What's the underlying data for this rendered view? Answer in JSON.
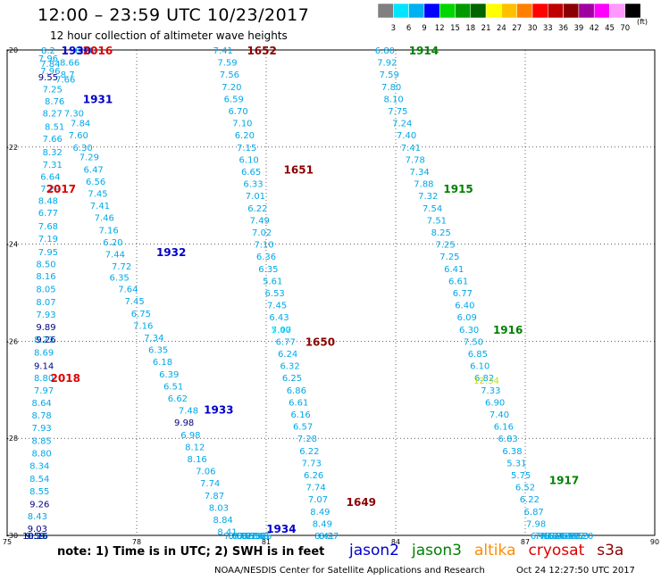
{
  "header": {
    "title": "12:00 – 23:59 UTC 10/23/2017",
    "subtitle": "12 hour collection of altimeter wave heights"
  },
  "colorbar": {
    "labels": [
      "3",
      "6",
      "9",
      "12",
      "15",
      "18",
      "21",
      "24",
      "27",
      "30",
      "33",
      "36",
      "39",
      "42",
      "45",
      "70"
    ],
    "colors": [
      "#808080",
      "#00e5ff",
      "#00b0f0",
      "#0000ff",
      "#00d600",
      "#009a00",
      "#006400",
      "#ffff00",
      "#ffc000",
      "#ff8000",
      "#ff0000",
      "#c00000",
      "#8b0000",
      "#a000a0",
      "#ff00ff",
      "#ff99ff",
      "#000000"
    ],
    "unit": "(ft)"
  },
  "footer": {
    "note": "note:  1) Time is in UTC;  2) SWH is in feet",
    "credit": "NOAA/NESDIS Center for Satellite Applications and Research",
    "timestamp": "Oct 24 12:27:50 UTC 2017"
  },
  "legend": [
    {
      "label": "jason2",
      "color": "#0000cc"
    },
    {
      "label": "jason3",
      "color": "#008000"
    },
    {
      "label": "altika",
      "color": "#ff8c00"
    },
    {
      "label": "cryosat",
      "color": "#dd0000"
    },
    {
      "label": "s3a",
      "color": "#8b0000"
    }
  ],
  "chart_data": {
    "type": "scatter",
    "xlim": [
      75,
      90
    ],
    "ylim": [
      -30,
      -20
    ],
    "xticks": [
      "75",
      "78",
      "81",
      "84",
      "87",
      "90"
    ],
    "yticks": [
      "-20",
      "-22",
      "-24",
      "-26",
      "-28",
      "-30"
    ],
    "grid": true,
    "tracks": [
      {
        "color": "#00a8e8",
        "points": [
          [
            75.95,
            -20.0,
            "8.2"
          ],
          [
            76.8,
            -20.0,
            "8.16"
          ],
          [
            75.95,
            -20.17,
            "7.96"
          ],
          [
            76.0,
            -20.28,
            "7.84"
          ],
          [
            76.0,
            -20.42,
            "7.96"
          ],
          [
            76.05,
            -20.8,
            "7.25"
          ],
          [
            76.1,
            -21.05,
            "8.76"
          ],
          [
            76.05,
            -21.3,
            "8.27"
          ],
          [
            76.1,
            -21.57,
            "8.51"
          ],
          [
            76.05,
            -21.82,
            "7.66"
          ],
          [
            76.05,
            -22.1,
            "8.32"
          ],
          [
            76.05,
            -22.35,
            "7.31"
          ],
          [
            76.0,
            -22.6,
            "6.64"
          ],
          [
            76.0,
            -22.85,
            "7.29"
          ],
          [
            75.95,
            -23.1,
            "8.48"
          ],
          [
            75.95,
            -23.35,
            "6.77"
          ],
          [
            75.95,
            -23.62,
            "7.68"
          ],
          [
            75.95,
            -23.88,
            "7.19"
          ],
          [
            75.95,
            -24.15,
            "7.95"
          ],
          [
            75.9,
            -24.4,
            "8.50"
          ],
          [
            75.9,
            -24.65,
            "8.16"
          ],
          [
            75.9,
            -24.92,
            "8.05"
          ],
          [
            75.9,
            -25.18,
            "8.07"
          ],
          [
            75.9,
            -25.44,
            "7.93"
          ],
          [
            75.85,
            -25.96,
            "8.23"
          ],
          [
            75.85,
            -26.22,
            "8.69"
          ],
          [
            75.85,
            -26.75,
            "8.80"
          ],
          [
            75.85,
            -27.0,
            "7.97"
          ],
          [
            75.8,
            -27.26,
            "8.64"
          ],
          [
            75.8,
            -27.52,
            "8.78"
          ],
          [
            75.8,
            -27.78,
            "7.93"
          ],
          [
            75.8,
            -28.04,
            "8.85"
          ],
          [
            75.8,
            -28.3,
            "8.80"
          ],
          [
            75.75,
            -28.56,
            "8.34"
          ],
          [
            75.75,
            -28.82,
            "8.54"
          ],
          [
            75.75,
            -29.08,
            "8.55"
          ],
          [
            75.7,
            -29.6,
            "8.43"
          ],
          [
            75.7,
            -30.1,
            "8.59"
          ],
          [
            76.35,
            -20.6,
            "7.66"
          ],
          [
            76.45,
            -20.25,
            "8.66"
          ],
          [
            76.4,
            -20.5,
            "8.7"
          ],
          [
            76.55,
            -21.3,
            "7.30"
          ],
          [
            76.7,
            -21.5,
            "7.84"
          ],
          [
            76.65,
            -21.75,
            "7.60"
          ],
          [
            76.75,
            -22.0,
            "6.30"
          ],
          [
            76.9,
            -22.2,
            "7.29"
          ],
          [
            77.0,
            -22.45,
            "6.47"
          ],
          [
            77.05,
            -22.7,
            "6.56"
          ],
          [
            77.1,
            -22.95,
            "7.45"
          ],
          [
            77.15,
            -23.2,
            "7.41"
          ],
          [
            77.25,
            -23.45,
            "7.46"
          ],
          [
            77.35,
            -23.7,
            "7.16"
          ],
          [
            77.45,
            -23.95,
            "6.20"
          ],
          [
            77.5,
            -24.2,
            "7.44"
          ],
          [
            77.65,
            -24.45,
            "7.72"
          ],
          [
            77.6,
            -24.68,
            "6.35"
          ],
          [
            77.8,
            -24.92,
            "7.64"
          ],
          [
            77.95,
            -25.17,
            "7.45"
          ],
          [
            78.1,
            -25.42,
            "6.75"
          ],
          [
            78.15,
            -25.67,
            "7.16"
          ],
          [
            78.4,
            -25.92,
            "7.34"
          ],
          [
            78.5,
            -26.17,
            "6.35"
          ],
          [
            78.6,
            -26.42,
            "6.18"
          ],
          [
            78.75,
            -26.67,
            "6.39"
          ],
          [
            78.85,
            -26.92,
            "6.51"
          ],
          [
            78.95,
            -27.17,
            "6.62"
          ],
          [
            79.2,
            -27.42,
            "7.48"
          ],
          [
            79.25,
            -27.92,
            "6.98"
          ],
          [
            79.35,
            -28.17,
            "8.12"
          ],
          [
            79.4,
            -28.42,
            "8.16"
          ],
          [
            79.6,
            -28.67,
            "7.06"
          ],
          [
            79.7,
            -28.92,
            "7.74"
          ],
          [
            79.8,
            -29.17,
            "7.87"
          ],
          [
            79.9,
            -29.42,
            "8.03"
          ],
          [
            80.0,
            -29.67,
            "8.84"
          ],
          [
            80.1,
            -29.92,
            "8.41"
          ],
          [
            80.25,
            -30.17,
            "7.87"
          ],
          [
            80.35,
            -30.42,
            "8.58"
          ],
          [
            80.45,
            -30.67,
            "7.82"
          ],
          [
            80.55,
            -30.92,
            "8.77"
          ],
          [
            80.65,
            -31.17,
            "8.55"
          ],
          [
            80.75,
            -31.42,
            "8.30"
          ],
          [
            80.85,
            -31.67,
            "7.65"
          ],
          [
            80.9,
            -31.92,
            "8.66"
          ]
        ]
      },
      {
        "color": "#00a8e8",
        "points": [
          [
            80.0,
            -20.0,
            "7.41"
          ],
          [
            80.1,
            -20.25,
            "7.59"
          ],
          [
            80.15,
            -20.5,
            "7.56"
          ],
          [
            80.2,
            -20.75,
            "7.20"
          ],
          [
            80.25,
            -21.0,
            "6.59"
          ],
          [
            80.35,
            -21.25,
            "6.70"
          ],
          [
            80.45,
            -21.5,
            "7.10"
          ],
          [
            80.5,
            -21.75,
            "6.20"
          ],
          [
            80.55,
            -22.0,
            "7.15"
          ],
          [
            80.6,
            -22.25,
            "6.10"
          ],
          [
            80.65,
            -22.5,
            "6.65"
          ],
          [
            80.7,
            -22.75,
            "6.33"
          ],
          [
            80.75,
            -23.0,
            "7.01"
          ],
          [
            80.8,
            -23.25,
            "6.22"
          ],
          [
            80.85,
            -23.5,
            "7.49"
          ],
          [
            80.9,
            -23.75,
            "7.02"
          ],
          [
            80.95,
            -24.0,
            "7.10"
          ],
          [
            81.0,
            -24.25,
            "6.36"
          ],
          [
            81.05,
            -24.5,
            "6.35"
          ],
          [
            81.15,
            -24.75,
            "5.61"
          ],
          [
            81.2,
            -25.0,
            "6.53"
          ],
          [
            81.25,
            -25.25,
            "7.45"
          ],
          [
            81.3,
            -25.5,
            "6.43"
          ],
          [
            81.35,
            -25.75,
            "7.00"
          ],
          [
            81.45,
            -26.0,
            "6.77"
          ],
          [
            81.5,
            -26.25,
            "6.24"
          ],
          [
            81.55,
            -26.5,
            "6.32"
          ],
          [
            81.6,
            -26.75,
            "6.25"
          ],
          [
            81.7,
            -27.0,
            "6.86"
          ],
          [
            81.75,
            -27.25,
            "6.61"
          ],
          [
            81.8,
            -27.5,
            "6.16"
          ],
          [
            81.85,
            -27.75,
            "6.57"
          ],
          [
            81.95,
            -28.0,
            "7.28"
          ],
          [
            82.0,
            -28.25,
            "6.22"
          ],
          [
            82.05,
            -28.5,
            "7.73"
          ],
          [
            82.1,
            -28.75,
            "6.26"
          ],
          [
            82.15,
            -29.0,
            "7.74"
          ],
          [
            82.2,
            -29.25,
            "7.07"
          ],
          [
            82.25,
            -29.5,
            "8.49"
          ],
          [
            82.3,
            -29.75,
            "8.49"
          ],
          [
            82.35,
            -30.0,
            "8.41"
          ],
          [
            82.45,
            -30.25,
            "8.27"
          ]
        ]
      },
      {
        "color": "#00a8e8",
        "points": [
          [
            83.75,
            -20.0,
            "6.80"
          ],
          [
            83.8,
            -20.25,
            "7.92"
          ],
          [
            83.85,
            -20.5,
            "7.59"
          ],
          [
            83.9,
            -20.75,
            "7.80"
          ],
          [
            83.95,
            -21.0,
            "8.10"
          ],
          [
            84.05,
            -21.25,
            "7.75"
          ],
          [
            84.15,
            -21.5,
            "7.24"
          ],
          [
            84.25,
            -21.75,
            "7.40"
          ],
          [
            84.35,
            -22.0,
            "7.41"
          ],
          [
            84.45,
            -22.25,
            "7.78"
          ],
          [
            84.55,
            -22.5,
            "7.34"
          ],
          [
            84.65,
            -22.75,
            "7.88"
          ],
          [
            84.75,
            -23.0,
            "7.32"
          ],
          [
            84.85,
            -23.25,
            "7.54"
          ],
          [
            84.95,
            -23.5,
            "7.51"
          ],
          [
            85.05,
            -23.75,
            "8.25"
          ],
          [
            85.15,
            -24.0,
            "7.25"
          ],
          [
            85.25,
            -24.25,
            "7.25"
          ],
          [
            85.35,
            -24.5,
            "6.41"
          ],
          [
            85.45,
            -24.75,
            "6.61"
          ],
          [
            85.55,
            -25.0,
            "6.77"
          ],
          [
            85.6,
            -25.25,
            "6.40"
          ],
          [
            85.65,
            -25.5,
            "6.09"
          ],
          [
            85.7,
            -25.75,
            "6.30"
          ],
          [
            85.8,
            -26.0,
            "7.50"
          ],
          [
            85.9,
            -26.25,
            "6.85"
          ],
          [
            85.95,
            -26.5,
            "6.10"
          ],
          [
            86.05,
            -26.75,
            "6.82"
          ],
          [
            86.2,
            -27.0,
            "7.33"
          ],
          [
            86.3,
            -27.25,
            "6.90"
          ],
          [
            86.4,
            -27.5,
            "7.40"
          ],
          [
            86.5,
            -27.75,
            "6.16"
          ],
          [
            86.6,
            -28.0,
            "6.83"
          ],
          [
            86.7,
            -28.25,
            "6.38"
          ],
          [
            86.8,
            -28.5,
            "5.31"
          ],
          [
            86.9,
            -28.75,
            "5.75"
          ],
          [
            87.0,
            -29.0,
            "6.52"
          ],
          [
            87.1,
            -29.25,
            "6.22"
          ],
          [
            87.2,
            -29.5,
            "6.87"
          ],
          [
            87.25,
            -29.75,
            "7.98"
          ],
          [
            87.35,
            -30.0,
            "6.40"
          ],
          [
            87.45,
            -30.25,
            "7.16"
          ],
          [
            87.55,
            -30.5,
            "7.12"
          ],
          [
            87.65,
            -30.75,
            "6.64"
          ],
          [
            87.75,
            -31.0,
            "6.86"
          ],
          [
            87.85,
            -31.25,
            "7.14"
          ],
          [
            87.95,
            -31.5,
            "7.00"
          ],
          [
            88.05,
            -31.75,
            "6.90"
          ],
          [
            88.15,
            -32.0,
            "8.32"
          ],
          [
            88.25,
            -32.25,
            "7.53"
          ],
          [
            88.35,
            -32.5,
            "7.20"
          ]
        ]
      }
    ],
    "highlights": [
      {
        "x": 75.95,
        "y": -20.55,
        "text": "9.55",
        "color": "#000080"
      },
      {
        "x": 75.9,
        "y": -25.7,
        "text": "9.89",
        "color": "#000080"
      },
      {
        "x": 75.9,
        "y": -25.96,
        "text": "9.26",
        "color": "#000080"
      },
      {
        "x": 75.85,
        "y": -26.5,
        "text": "9.14",
        "color": "#000080"
      },
      {
        "x": 75.75,
        "y": -29.35,
        "text": "9.26",
        "color": "#000080"
      },
      {
        "x": 75.7,
        "y": -29.85,
        "text": "9.03",
        "color": "#000080"
      },
      {
        "x": 75.65,
        "y": -30.35,
        "text": "10.16",
        "color": "#000080"
      },
      {
        "x": 75.65,
        "y": -30.6,
        "text": "9.59",
        "color": "#000080"
      },
      {
        "x": 79.1,
        "y": -27.67,
        "text": "9.98",
        "color": "#000080"
      },
      {
        "x": 81.35,
        "y": -25.75,
        "text": "5.47",
        "color": "#00e5ff"
      },
      {
        "x": 86.1,
        "y": -26.8,
        "text": "12.34",
        "color": "#c8e000"
      }
    ],
    "pass_labels": [
      {
        "x": 76.6,
        "y": -20.0,
        "text": "1930",
        "color": "#0000cc"
      },
      {
        "x": 77.1,
        "y": -20.0,
        "text": "2016",
        "color": "#dd0000"
      },
      {
        "x": 77.1,
        "y": -21.0,
        "text": "1931",
        "color": "#0000cc"
      },
      {
        "x": 80.9,
        "y": -20.0,
        "text": "1652",
        "color": "#8b0000"
      },
      {
        "x": 81.75,
        "y": -22.45,
        "text": "1651",
        "color": "#8b0000"
      },
      {
        "x": 84.65,
        "y": -20.0,
        "text": "1914",
        "color": "#008000"
      },
      {
        "x": 76.25,
        "y": -22.85,
        "text": "2017",
        "color": "#dd0000"
      },
      {
        "x": 85.45,
        "y": -22.85,
        "text": "1915",
        "color": "#008000"
      },
      {
        "x": 78.8,
        "y": -24.15,
        "text": "1932",
        "color": "#0000cc"
      },
      {
        "x": 86.6,
        "y": -25.75,
        "text": "1916",
        "color": "#008000"
      },
      {
        "x": 82.25,
        "y": -26.0,
        "text": "1650",
        "color": "#8b0000"
      },
      {
        "x": 76.35,
        "y": -26.75,
        "text": "2018",
        "color": "#dd0000"
      },
      {
        "x": 79.9,
        "y": -27.4,
        "text": "1933",
        "color": "#0000cc"
      },
      {
        "x": 87.9,
        "y": -28.85,
        "text": "1917",
        "color": "#008000"
      },
      {
        "x": 83.2,
        "y": -29.3,
        "text": "1649",
        "color": "#8b0000"
      },
      {
        "x": 81.35,
        "y": -29.85,
        "text": "1934",
        "color": "#0000cc"
      }
    ]
  }
}
